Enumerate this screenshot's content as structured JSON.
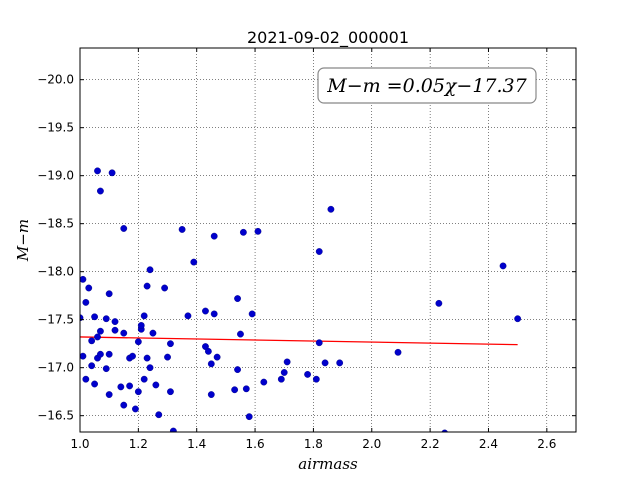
{
  "chart_data": {
    "type": "scatter",
    "title": "2021-09-02_000001",
    "xlabel": "airmass",
    "ylabel": "M−m",
    "xlim": [
      1.0,
      2.7
    ],
    "ylim": [
      -20.33,
      -16.33
    ],
    "y_inverted": true,
    "grid": true,
    "xticks": [
      "1.0",
      "1.2",
      "1.4",
      "1.6",
      "1.8",
      "2.0",
      "2.2",
      "2.4",
      "2.6"
    ],
    "yticks": [
      "−16.5",
      "−17.0",
      "−17.5",
      "−18.0",
      "−18.5",
      "−19.0",
      "−19.5",
      "−20.0"
    ],
    "annotation": "M−m =0.05χ−17.37",
    "point_color": "#0000cc",
    "fit_color": "#ff0000",
    "fit_line": {
      "x": [
        1.0,
        2.5
      ],
      "y": [
        -17.32,
        -17.24
      ]
    },
    "points": {
      "x": [
        1.0,
        1.01,
        1.01,
        1.02,
        1.02,
        1.03,
        1.04,
        1.04,
        1.05,
        1.05,
        1.06,
        1.06,
        1.06,
        1.07,
        1.07,
        1.07,
        1.09,
        1.09,
        1.1,
        1.1,
        1.1,
        1.11,
        1.12,
        1.12,
        1.14,
        1.15,
        1.15,
        1.15,
        1.17,
        1.17,
        1.18,
        1.19,
        1.2,
        1.2,
        1.21,
        1.21,
        1.22,
        1.22,
        1.23,
        1.23,
        1.24,
        1.24,
        1.25,
        1.26,
        1.27,
        1.29,
        1.3,
        1.31,
        1.31,
        1.32,
        1.35,
        1.37,
        1.39,
        1.43,
        1.43,
        1.44,
        1.45,
        1.45,
        1.46,
        1.46,
        1.47,
        1.53,
        1.54,
        1.54,
        1.55,
        1.56,
        1.57,
        1.58,
        1.59,
        1.61,
        1.63,
        1.69,
        1.7,
        1.71,
        1.78,
        1.81,
        1.82,
        1.82,
        1.84,
        1.86,
        1.89,
        2.09,
        2.23,
        2.25,
        2.45,
        2.5
      ],
      "y": [
        -17.52,
        -17.12,
        -17.92,
        -16.88,
        -17.68,
        -17.83,
        -17.28,
        -17.02,
        -16.83,
        -17.53,
        -19.05,
        -17.32,
        -17.1,
        -18.84,
        -17.38,
        -17.14,
        -16.99,
        -17.51,
        -17.77,
        -17.14,
        -16.72,
        -19.03,
        -17.39,
        -17.48,
        -16.8,
        -16.61,
        -17.36,
        -18.45,
        -17.1,
        -16.81,
        -17.12,
        -16.57,
        -17.27,
        -16.75,
        -17.4,
        -17.44,
        -16.88,
        -17.54,
        -17.85,
        -17.1,
        -17.0,
        -18.02,
        -17.36,
        -16.82,
        -16.51,
        -17.83,
        -17.11,
        -16.75,
        -17.25,
        -16.34,
        -18.44,
        -17.54,
        -18.1,
        -17.59,
        -17.22,
        -17.17,
        -16.72,
        -17.04,
        -17.56,
        -18.37,
        -17.11,
        -16.77,
        -16.98,
        -17.72,
        -17.35,
        -18.41,
        -16.78,
        -16.49,
        -17.56,
        -18.42,
        -16.85,
        -16.88,
        -16.95,
        -17.06,
        -16.93,
        -16.88,
        -17.26,
        -18.21,
        -17.05,
        -18.65,
        -17.05,
        -17.16,
        -17.67,
        -16.32,
        -18.06,
        -17.51
      ]
    }
  }
}
